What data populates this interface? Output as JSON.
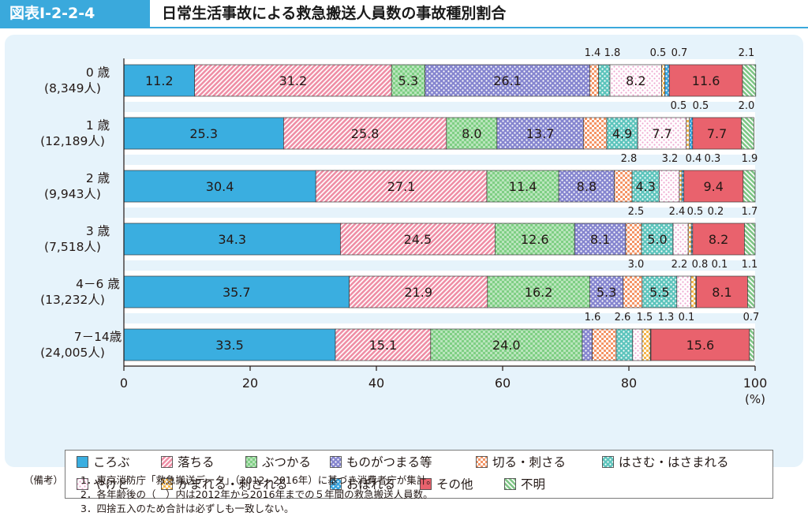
{
  "figure": {
    "number": "図表Ⅰ-2-2-4",
    "title": "日常生活事故による救急搬送人員数の事故種別割合"
  },
  "colors": {
    "header": "#3aa9dc",
    "panel_bg": "#e6f3fb"
  },
  "chart_data": {
    "type": "bar",
    "orientation": "horizontal",
    "stacked": true,
    "xlim": [
      0,
      100
    ],
    "x_ticks": [
      "0",
      "20",
      "40",
      "60",
      "80",
      "100"
    ],
    "x_unit": "(%)",
    "grid": false,
    "legend_position": "bottom",
    "categories": [
      {
        "age": "0 歳",
        "count": "(8,349人)"
      },
      {
        "age": "1 歳",
        "count": "(12,189人)"
      },
      {
        "age": "2 歳",
        "count": "(9,943人)"
      },
      {
        "age": "3 歳",
        "count": "(7,518人)"
      },
      {
        "age": "4－6 歳",
        "count": "(13,232人)"
      },
      {
        "age": "7－14歳",
        "count": "(24,005人)"
      }
    ],
    "series": [
      {
        "name": "ころぶ",
        "color": "#3aaee0",
        "pattern": "solid",
        "values": [
          11.2,
          25.3,
          30.4,
          34.3,
          35.7,
          33.5
        ]
      },
      {
        "name": "落ちる",
        "color": "#ef8fa6",
        "pattern": "diag",
        "values": [
          31.2,
          25.8,
          27.1,
          24.5,
          21.9,
          15.1
        ]
      },
      {
        "name": "ぶつかる",
        "color": "#7fcf84",
        "pattern": "grid",
        "values": [
          5.3,
          8.0,
          11.4,
          12.6,
          16.2,
          24.0
        ]
      },
      {
        "name": "ものがつまる等",
        "color": "#8585cf",
        "pattern": "dots",
        "values": [
          26.1,
          13.7,
          8.8,
          8.1,
          5.3,
          1.6
        ]
      },
      {
        "name": "切る・刺さる",
        "color": "#f49566",
        "pattern": "check",
        "values": [
          1.4,
          3.7,
          2.8,
          2.5,
          3.0,
          3.8
        ]
      },
      {
        "name": "はさむ・はさまれる",
        "color": "#5cc4bc",
        "pattern": "dots",
        "values": [
          1.8,
          4.9,
          4.3,
          5.0,
          5.5,
          2.6
        ]
      },
      {
        "name": "やけど",
        "color": "#eea8d0",
        "pattern": "dots-light",
        "values": [
          8.2,
          7.7,
          3.2,
          2.4,
          2.2,
          1.5
        ]
      },
      {
        "name": "かまれる・刺される",
        "color": "#f4b54a",
        "pattern": "check",
        "values": [
          0.5,
          0.5,
          0.4,
          0.5,
          0.8,
          1.3
        ]
      },
      {
        "name": "おぼれる",
        "color": "#36a4df",
        "pattern": "dots",
        "values": [
          0.7,
          0.5,
          0.3,
          0.2,
          0.1,
          0.1
        ]
      },
      {
        "name": "その他",
        "color": "#e9626d",
        "pattern": "solid",
        "values": [
          11.6,
          7.7,
          9.4,
          8.2,
          8.1,
          15.6
        ]
      },
      {
        "name": "不明",
        "color": "#7fc686",
        "pattern": "diag-r",
        "values": [
          2.1,
          2.0,
          1.9,
          1.7,
          1.1,
          0.7
        ]
      }
    ],
    "outside_labels": [
      [
        "1.4",
        "1.8",
        "0.5",
        "0.7",
        "2.1"
      ],
      [
        "0.5",
        "0.5",
        "2.0"
      ],
      [
        "2.8",
        "3.2",
        "0.4",
        "0.3",
        "1.9"
      ],
      [
        "2.5",
        "2.4",
        "0.5",
        "0.2",
        "1.7"
      ],
      [
        "3.0",
        "2.2",
        "0.8",
        "0.1",
        "1.1"
      ],
      [
        "1.6",
        "2.6",
        "1.5",
        "1.3",
        "0.1",
        "0.7"
      ]
    ]
  },
  "notes": {
    "label": "（備考）",
    "lines": [
      "1．東京消防庁「救急搬送データ」（2012−2016年）に基づき消費者庁が集計。",
      "2．各年齢後の（　）内は2012年から2016年までの５年間の救急搬送人員数。",
      "3．四捨五入のため合計は必ずしも一致しない。"
    ]
  }
}
